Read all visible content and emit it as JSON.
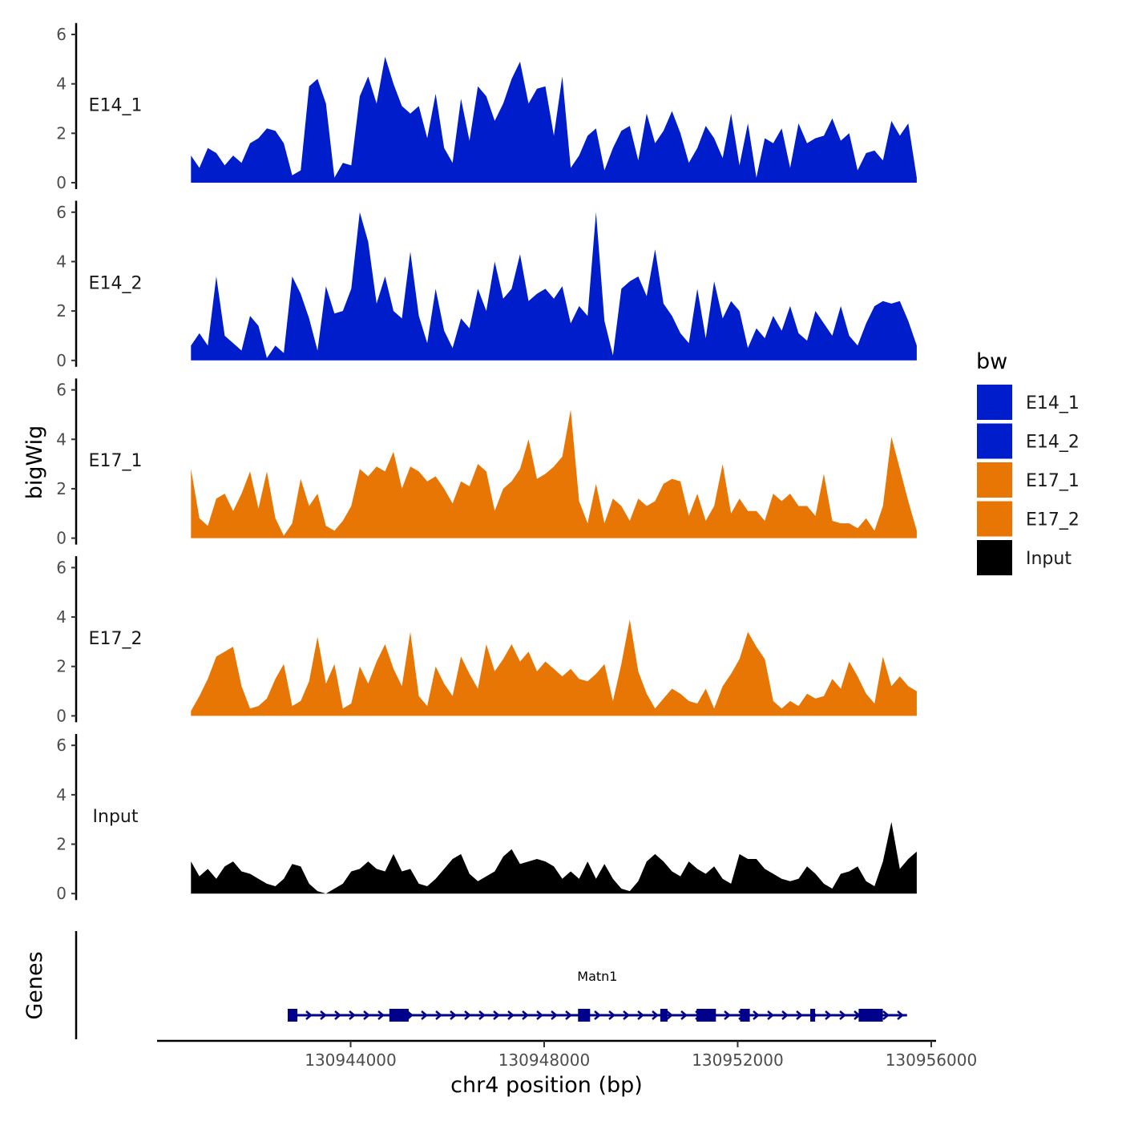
{
  "chart_data": {
    "type": "area",
    "ylabel": "bigWig",
    "xlabel": "chr4 position (bp)",
    "chromosome": "chr4",
    "xlim": [
      130940000,
      130956100
    ],
    "x_ticks": [
      130944000,
      130948000,
      130952000,
      130956000
    ],
    "x_tick_labels": [
      "130944000",
      "130948000",
      "130952000",
      "130956000"
    ],
    "ylim": [
      0,
      6.3
    ],
    "y_ticks": [
      0,
      2,
      4,
      6
    ],
    "y_tick_labels": [
      "0",
      "2",
      "4",
      "6"
    ],
    "legend": {
      "title": "bw",
      "position": "right",
      "entries": [
        {
          "label": "E14_1",
          "color": "#001dcc"
        },
        {
          "label": "E14_2",
          "color": "#001dcc"
        },
        {
          "label": "E17_1",
          "color": "#e87605"
        },
        {
          "label": "E17_2",
          "color": "#e87605"
        },
        {
          "label": "Input",
          "color": "#000000"
        }
      ]
    },
    "track_x_start": 130940700,
    "track_x_end": 130955700,
    "series": [
      {
        "name": "E14_1",
        "color": "#001dcc",
        "values": [
          1.1,
          0.6,
          1.4,
          1.2,
          0.7,
          1.1,
          0.8,
          1.6,
          1.8,
          2.2,
          2.1,
          1.6,
          0.3,
          0.5,
          3.9,
          4.2,
          3.2,
          0.2,
          0.8,
          0.7,
          3.5,
          4.3,
          3.2,
          5.1,
          4.0,
          3.1,
          2.8,
          3.1,
          1.8,
          3.6,
          1.4,
          0.8,
          3.4,
          1.7,
          3.9,
          3.5,
          2.5,
          3.2,
          4.2,
          4.9,
          3.2,
          3.8,
          3.9,
          1.9,
          4.3,
          0.6,
          1.1,
          1.9,
          2.2,
          0.5,
          1.4,
          2.1,
          2.3,
          0.9,
          2.8,
          1.6,
          2.1,
          2.9,
          2.0,
          0.8,
          1.4,
          2.3,
          1.8,
          1.0,
          2.8,
          0.7,
          2.4,
          0.2,
          1.8,
          1.6,
          2.2,
          0.6,
          2.4,
          1.6,
          1.8,
          1.9,
          2.6,
          1.7,
          2.0,
          0.5,
          1.2,
          1.3,
          0.9,
          2.5,
          1.9,
          2.4,
          0.2
        ],
        "box_min": 0,
        "box_max": 6.3
      },
      {
        "name": "E14_2",
        "color": "#001dcc",
        "values": [
          0.6,
          1.1,
          0.6,
          3.4,
          1.0,
          0.7,
          0.4,
          1.8,
          1.4,
          0.1,
          0.6,
          0.3,
          3.4,
          2.7,
          1.7,
          0.4,
          3.0,
          1.9,
          2.0,
          2.9,
          6.0,
          4.8,
          2.3,
          3.4,
          2.0,
          1.7,
          4.4,
          1.8,
          0.7,
          2.9,
          1.2,
          0.5,
          1.7,
          1.3,
          2.9,
          2.0,
          4.0,
          2.5,
          2.9,
          4.3,
          2.4,
          2.7,
          2.9,
          2.5,
          3.0,
          1.5,
          2.2,
          1.8,
          6.0,
          1.6,
          0.2,
          2.9,
          3.2,
          3.4,
          2.6,
          4.5,
          2.3,
          1.8,
          1.1,
          0.7,
          2.9,
          0.9,
          3.2,
          1.7,
          2.4,
          2.0,
          0.5,
          1.3,
          0.9,
          1.8,
          1.2,
          2.2,
          1.1,
          0.8,
          2.0,
          1.5,
          1.0,
          2.2,
          1.0,
          0.6,
          1.5,
          2.2,
          2.4,
          2.3,
          2.4,
          1.6,
          0.6
        ],
        "box_min": 0,
        "box_max": 6.3
      },
      {
        "name": "E17_1",
        "color": "#e87605",
        "values": [
          2.8,
          0.8,
          0.5,
          1.6,
          1.8,
          1.1,
          1.8,
          2.7,
          1.2,
          2.7,
          0.8,
          0.1,
          0.6,
          2.4,
          1.3,
          1.8,
          0.5,
          0.3,
          0.7,
          1.3,
          2.8,
          2.5,
          2.9,
          2.7,
          3.5,
          2.0,
          2.9,
          2.7,
          2.3,
          2.5,
          2.0,
          1.4,
          2.3,
          2.1,
          3.0,
          2.7,
          1.1,
          2.0,
          2.3,
          2.8,
          4.0,
          2.4,
          2.6,
          2.9,
          3.3,
          5.2,
          1.5,
          0.6,
          2.2,
          0.6,
          1.6,
          1.3,
          0.7,
          1.6,
          1.3,
          1.5,
          2.2,
          2.4,
          2.3,
          0.9,
          1.8,
          0.7,
          1.3,
          3.0,
          1.0,
          1.6,
          1.1,
          1.1,
          0.7,
          1.8,
          1.5,
          1.8,
          1.3,
          1.3,
          0.9,
          2.6,
          0.7,
          0.6,
          0.6,
          0.4,
          0.8,
          0.3,
          1.3,
          4.1,
          2.8,
          1.5,
          0.3
        ],
        "box_min": 0,
        "box_max": 6.3
      },
      {
        "name": "E17_2",
        "color": "#e87605",
        "values": [
          0.2,
          0.8,
          1.5,
          2.4,
          2.6,
          2.8,
          1.2,
          0.3,
          0.4,
          0.7,
          1.5,
          2.1,
          0.4,
          0.6,
          1.4,
          3.2,
          1.3,
          2.1,
          0.3,
          0.5,
          2.0,
          1.3,
          2.2,
          2.9,
          1.9,
          1.2,
          3.4,
          0.8,
          0.4,
          2.0,
          1.3,
          0.8,
          2.4,
          1.7,
          1.1,
          2.9,
          1.8,
          2.3,
          2.9,
          2.2,
          2.6,
          1.8,
          2.2,
          1.9,
          1.6,
          1.9,
          1.5,
          1.4,
          1.7,
          2.1,
          0.6,
          2.1,
          3.9,
          1.8,
          0.9,
          0.3,
          0.7,
          1.1,
          0.9,
          0.6,
          0.5,
          1.1,
          0.3,
          1.2,
          1.7,
          2.3,
          3.4,
          2.8,
          2.3,
          0.6,
          0.3,
          0.6,
          0.4,
          0.9,
          0.7,
          0.8,
          1.5,
          1.1,
          2.2,
          1.6,
          0.9,
          0.5,
          2.4,
          1.2,
          1.6,
          1.2,
          1.0
        ],
        "box_min": 0,
        "box_max": 6.3
      },
      {
        "name": "Input",
        "color": "#000000",
        "values": [
          1.3,
          0.7,
          1.0,
          0.6,
          1.1,
          1.3,
          0.9,
          0.8,
          0.6,
          0.4,
          0.3,
          0.6,
          1.2,
          1.1,
          0.4,
          0.1,
          0.0,
          0.2,
          0.4,
          0.9,
          1.0,
          1.3,
          1.0,
          0.9,
          1.6,
          0.9,
          1.0,
          0.4,
          0.3,
          0.6,
          1.0,
          1.4,
          1.6,
          0.8,
          0.5,
          0.7,
          0.9,
          1.5,
          1.8,
          1.2,
          1.3,
          1.4,
          1.3,
          1.1,
          0.6,
          0.9,
          0.6,
          1.3,
          0.6,
          1.2,
          0.6,
          0.2,
          0.1,
          0.5,
          1.3,
          1.6,
          1.3,
          0.9,
          0.7,
          1.3,
          1.0,
          0.8,
          1.1,
          0.6,
          0.4,
          1.6,
          1.4,
          1.4,
          1.0,
          0.8,
          0.6,
          0.5,
          0.6,
          1.1,
          0.8,
          0.4,
          0.2,
          0.8,
          0.9,
          1.1,
          0.5,
          0.3,
          1.3,
          2.9,
          1.0,
          1.4,
          1.7
        ],
        "box_min": 0,
        "box_max": 6.3
      }
    ],
    "genes": {
      "label": "Genes",
      "items": [
        {
          "name": "Matn1",
          "color": "#00008b",
          "start": 130942700,
          "end": 130955500,
          "strand": "+",
          "exons": [
            [
              130942700,
              130942900
            ],
            [
              130944800,
              130945200
            ],
            [
              130948700,
              130948950
            ],
            [
              130950400,
              130950550
            ],
            [
              130951150,
              130951550
            ],
            [
              130952050,
              130952250
            ],
            [
              130953500,
              130953600
            ],
            [
              130954500,
              130955000
            ]
          ]
        }
      ]
    }
  }
}
